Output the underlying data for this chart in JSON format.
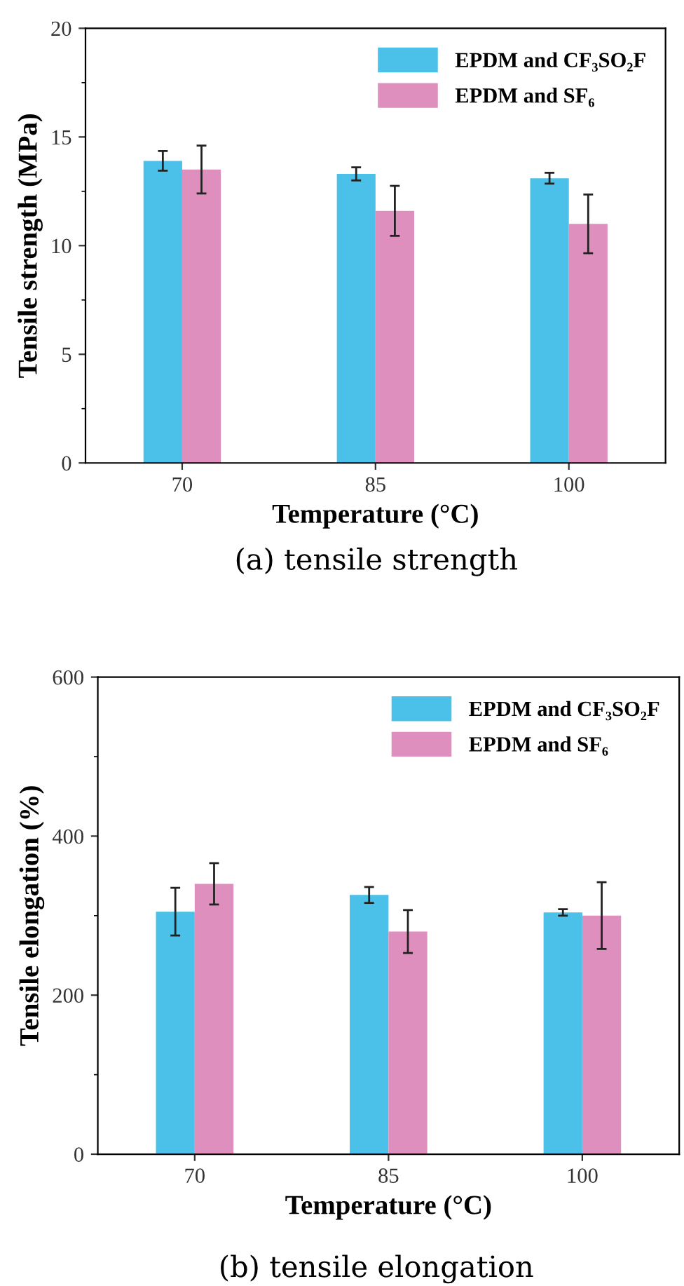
{
  "chart_data": [
    {
      "type": "bar",
      "categories": [
        "70",
        "85",
        "100"
      ],
      "xlabel": "Temperature (°C)",
      "ylabel": "Tensile strength (MPa)",
      "ylim": [
        0,
        20
      ],
      "yticks": [
        0,
        5,
        10,
        15,
        20
      ],
      "legend": "top right",
      "annotations": [
        "(a) tensile strength"
      ],
      "series": [
        {
          "name": "EPDM and CF₃SO₂F",
          "color": "#4bc0e8",
          "values": [
            13.9,
            13.3,
            13.1
          ],
          "errors": [
            0.45,
            0.3,
            0.25
          ]
        },
        {
          "name": "EPDM and SF₆",
          "color": "#de8fbd",
          "values": [
            13.5,
            11.6,
            11.0
          ],
          "errors": [
            1.1,
            1.15,
            1.35
          ]
        }
      ]
    },
    {
      "type": "bar",
      "categories": [
        "70",
        "85",
        "100"
      ],
      "xlabel": "Temperature (°C)",
      "ylabel": "Tensile elongation (%)",
      "ylim": [
        0,
        600
      ],
      "yticks": [
        0,
        200,
        400,
        600
      ],
      "legend": "top right",
      "annotations": [
        "(b) tensile elongation"
      ],
      "series": [
        {
          "name": "EPDM and CF₃SO₂F",
          "color": "#4bc0e8",
          "values": [
            305,
            326,
            304
          ],
          "errors": [
            30,
            10,
            4
          ]
        },
        {
          "name": "EPDM and SF₆",
          "color": "#de8fbd",
          "values": [
            340,
            280,
            300
          ],
          "errors": [
            26,
            27,
            42
          ]
        }
      ]
    }
  ]
}
